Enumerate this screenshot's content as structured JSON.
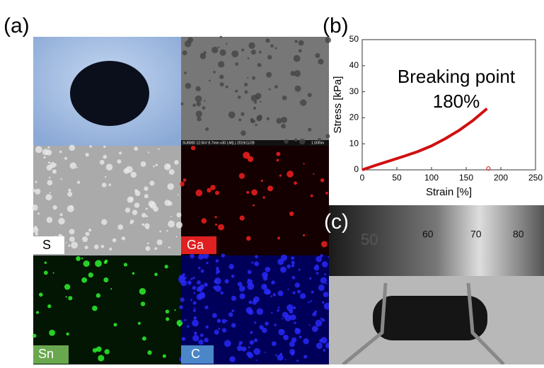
{
  "panels": {
    "a": "(a)",
    "b": "(b)",
    "c": "(c)"
  },
  "micrographs": {
    "sem_caption": "SU8000 12.0kV 8.7mm x30 LM(L) 2019/11/28",
    "sem_scale": "1.00mm",
    "labels": [
      "S",
      "Ga",
      "Sn",
      "C"
    ]
  },
  "ruler": {
    "labels": [
      "50",
      "60",
      "70",
      "80"
    ]
  },
  "chart_data": {
    "type": "line",
    "xlabel": "Strain [%]",
    "ylabel": "Stress [kPa]",
    "annotation": [
      "Breaking point",
      "180%"
    ],
    "x": [
      0,
      20,
      40,
      60,
      80,
      100,
      120,
      140,
      160,
      180
    ],
    "values": [
      0,
      1.8,
      3.5,
      5.2,
      7,
      9.2,
      12,
      15.2,
      19,
      23.5
    ],
    "color": "#d01010",
    "marker": {
      "x": 182,
      "y": 0.5
    },
    "xlim": [
      0,
      250
    ],
    "ylim": [
      0,
      50
    ],
    "xticks": [
      0,
      50,
      100,
      150,
      200,
      250
    ],
    "yticks": [
      0,
      10,
      20,
      30,
      40,
      50
    ]
  }
}
